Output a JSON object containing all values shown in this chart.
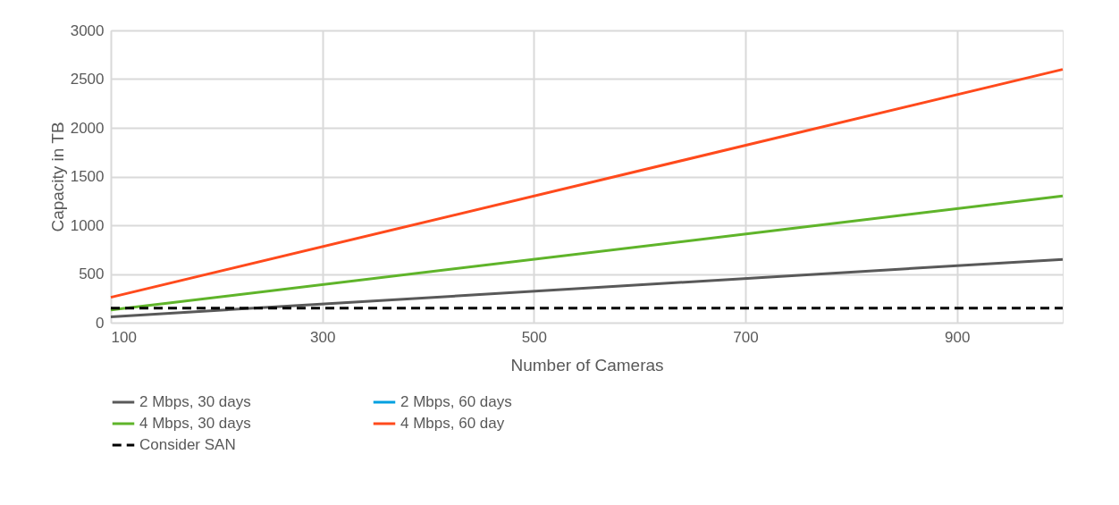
{
  "chart_data": {
    "type": "line",
    "xlabel": "Number  of Cameras",
    "ylabel": "Capacity in TB",
    "x": [
      100,
      1000
    ],
    "series": [
      {
        "name": "2 Mbps, 30 days",
        "color": "#595959",
        "values": [
          60,
          650
        ]
      },
      {
        "name": "2 Mbps, 60 days",
        "color": "#00a0e0",
        "values": [
          null,
          null
        ]
      },
      {
        "name": "4 Mbps, 30 days",
        "color": "#5fb42a",
        "values": [
          130,
          1300
        ]
      },
      {
        "name": "4 Mbps, 60 day",
        "color": "#ff4a1c",
        "values": [
          260,
          2600
        ]
      },
      {
        "name": "Consider SAN",
        "color": "#000000",
        "values": [
          150,
          150
        ],
        "line_style": "dashed"
      }
    ],
    "xlim": [
      100,
      1000
    ],
    "xticks": [
      100,
      300,
      500,
      700,
      900
    ],
    "ylim": [
      0,
      3000
    ],
    "yticks": [
      0,
      500,
      1000,
      1500,
      2000,
      2500,
      3000
    ],
    "grid": true,
    "legend": "bottom",
    "line_style": "solid",
    "marker": "none"
  }
}
